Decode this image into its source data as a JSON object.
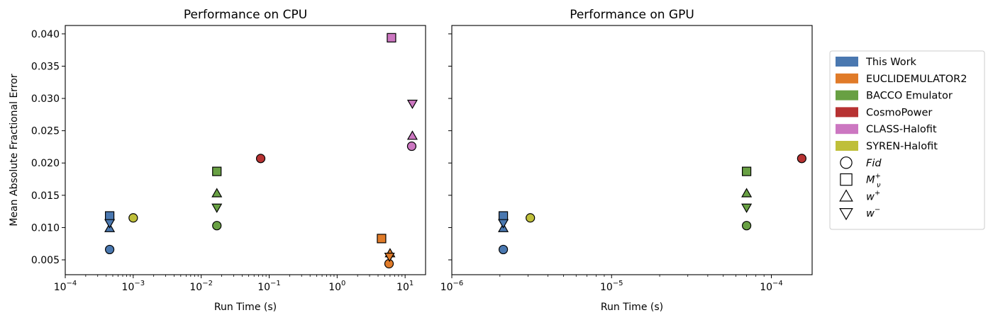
{
  "colors": {
    "This Work": "#4a78b0",
    "EUCLIDEMULATOR2": "#e07b29",
    "BACCO Emulator": "#68a043",
    "CosmoPower": "#b73232",
    "CLASS-Halofit": "#cc77c1",
    "SYREN-Halofit": "#bfbf3a"
  },
  "chart_data": [
    {
      "type": "scatter",
      "title": "Performance on CPU",
      "xlabel": "Run Time (s)",
      "ylabel": "Mean Absolute Fractional Error",
      "xscale": "log",
      "xlim": [
        0.0001,
        20
      ],
      "ylim": [
        0.0027,
        0.0413
      ],
      "xticks": [
        {
          "value": 0.0001,
          "base": "10",
          "exp": "−4"
        },
        {
          "value": 0.001,
          "base": "10",
          "exp": "−3"
        },
        {
          "value": 0.01,
          "base": "10",
          "exp": "−2"
        },
        {
          "value": 0.1,
          "base": "10",
          "exp": "−1"
        },
        {
          "value": 1,
          "base": "10",
          "exp": "0"
        },
        {
          "value": 10,
          "base": "10",
          "exp": "1"
        }
      ],
      "yticks": [
        "0.005",
        "0.010",
        "0.015",
        "0.020",
        "0.025",
        "0.030",
        "0.035",
        "0.040"
      ],
      "points": [
        {
          "method": "This Work",
          "marker": "circle",
          "x": 0.00045,
          "y": 0.0066
        },
        {
          "method": "This Work",
          "marker": "square",
          "x": 0.00045,
          "y": 0.0118
        },
        {
          "method": "This Work",
          "marker": "triangle-up",
          "x": 0.00045,
          "y": 0.0099
        },
        {
          "method": "This Work",
          "marker": "triangle-down",
          "x": 0.00045,
          "y": 0.0107
        },
        {
          "method": "SYREN-Halofit",
          "marker": "circle",
          "x": 0.001,
          "y": 0.0115
        },
        {
          "method": "BACCO Emulator",
          "marker": "circle",
          "x": 0.017,
          "y": 0.0103
        },
        {
          "method": "BACCO Emulator",
          "marker": "square",
          "x": 0.017,
          "y": 0.0187
        },
        {
          "method": "BACCO Emulator",
          "marker": "triangle-up",
          "x": 0.017,
          "y": 0.0153
        },
        {
          "method": "BACCO Emulator",
          "marker": "triangle-down",
          "x": 0.017,
          "y": 0.0131
        },
        {
          "method": "CosmoPower",
          "marker": "circle",
          "x": 0.075,
          "y": 0.0207
        },
        {
          "method": "EUCLIDEMULATOR2",
          "marker": "circle",
          "x": 5.8,
          "y": 0.0044
        },
        {
          "method": "EUCLIDEMULATOR2",
          "marker": "square",
          "x": 4.5,
          "y": 0.0083
        },
        {
          "method": "EUCLIDEMULATOR2",
          "marker": "triangle-up",
          "x": 6.0,
          "y": 0.006
        },
        {
          "method": "EUCLIDEMULATOR2",
          "marker": "triangle-down",
          "x": 5.9,
          "y": 0.0055
        },
        {
          "method": "CLASS-Halofit",
          "marker": "circle",
          "x": 12.5,
          "y": 0.0226
        },
        {
          "method": "CLASS-Halofit",
          "marker": "square",
          "x": 6.3,
          "y": 0.0394
        },
        {
          "method": "CLASS-Halofit",
          "marker": "triangle-up",
          "x": 12.8,
          "y": 0.0242
        },
        {
          "method": "CLASS-Halofit",
          "marker": "triangle-down",
          "x": 12.8,
          "y": 0.0292
        }
      ]
    },
    {
      "type": "scatter",
      "title": "Performance on GPU",
      "xlabel": "Run Time (s)",
      "ylabel": "",
      "xscale": "log",
      "xlim": [
        1e-06,
        0.00018
      ],
      "ylim": [
        0.0027,
        0.0413
      ],
      "xticks": [
        {
          "value": 1e-06,
          "base": "10",
          "exp": "−6"
        },
        {
          "value": 1e-05,
          "base": "10",
          "exp": "−5"
        },
        {
          "value": 0.0001,
          "base": "10",
          "exp": "−4"
        }
      ],
      "yticks": [],
      "points": [
        {
          "method": "This Work",
          "marker": "circle",
          "x": 2.1e-06,
          "y": 0.0066
        },
        {
          "method": "This Work",
          "marker": "square",
          "x": 2.1e-06,
          "y": 0.0118
        },
        {
          "method": "This Work",
          "marker": "triangle-up",
          "x": 2.1e-06,
          "y": 0.0099
        },
        {
          "method": "This Work",
          "marker": "triangle-down",
          "x": 2.1e-06,
          "y": 0.0107
        },
        {
          "method": "SYREN-Halofit",
          "marker": "circle",
          "x": 3.1e-06,
          "y": 0.0115
        },
        {
          "method": "BACCO Emulator",
          "marker": "circle",
          "x": 7e-05,
          "y": 0.0103
        },
        {
          "method": "BACCO Emulator",
          "marker": "square",
          "x": 7e-05,
          "y": 0.0187
        },
        {
          "method": "BACCO Emulator",
          "marker": "triangle-up",
          "x": 7e-05,
          "y": 0.0153
        },
        {
          "method": "BACCO Emulator",
          "marker": "triangle-down",
          "x": 7e-05,
          "y": 0.0131
        },
        {
          "method": "CosmoPower",
          "marker": "circle",
          "x": 0.000155,
          "y": 0.0207
        }
      ]
    }
  ],
  "legend": {
    "placement": "right",
    "methods": [
      "This Work",
      "EUCLIDEMULATOR2",
      "BACCO Emulator",
      "CosmoPower",
      "CLASS-Halofit",
      "SYREN-Halofit"
    ],
    "markers": [
      {
        "marker": "circle",
        "label": "Fid"
      },
      {
        "marker": "square",
        "label": "M",
        "sup": "+",
        "sub": "ν"
      },
      {
        "marker": "triangle-up",
        "label": "w",
        "sup": "+"
      },
      {
        "marker": "triangle-down",
        "label": "w",
        "sup": "−"
      }
    ]
  }
}
